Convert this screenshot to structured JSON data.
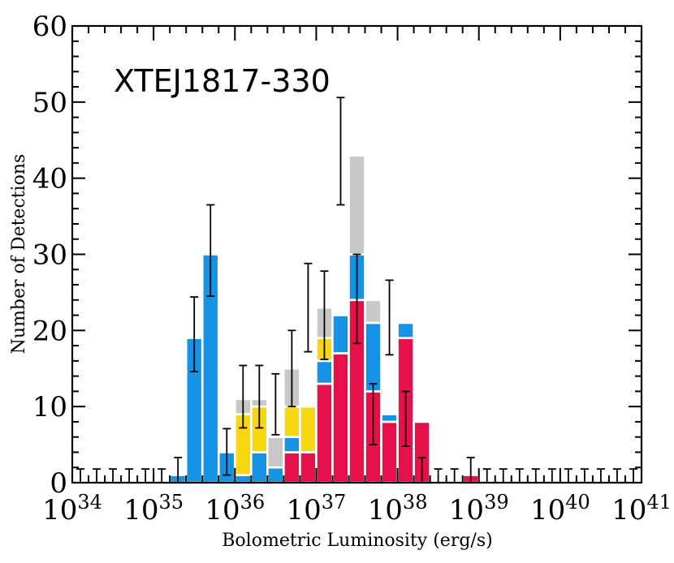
{
  "chart_data": {
    "type": "bar",
    "stacked": true,
    "annotation": "XTEJ1817-330",
    "xlabel": "Bolometric Luminosity (erg/s)",
    "ylabel": "Number of Detections",
    "xscale": "log",
    "xlim": [
      1e+34,
      1e+41
    ],
    "ylim": [
      0,
      60
    ],
    "y_ticks": [
      "0",
      "10",
      "20",
      "30",
      "40",
      "50",
      "60"
    ],
    "x_tick_labels": [
      {
        "base": "10",
        "exp": "34"
      },
      {
        "base": "10",
        "exp": "35"
      },
      {
        "base": "10",
        "exp": "36"
      },
      {
        "base": "10",
        "exp": "37"
      },
      {
        "base": "10",
        "exp": "38"
      },
      {
        "base": "10",
        "exp": "39"
      },
      {
        "base": "10",
        "exp": "40"
      },
      {
        "base": "10",
        "exp": "41"
      }
    ],
    "bin_width_dex": 0.2,
    "bin_start_log": 34.0,
    "bins_log_left": [
      35.2,
      35.4,
      35.6,
      35.8,
      36.0,
      36.2,
      36.4,
      36.6,
      36.8,
      37.0,
      37.2,
      37.4,
      37.6,
      37.8,
      38.0,
      38.2,
      38.8
    ],
    "series": [
      {
        "color": "#e8104a",
        "values": [
          0,
          0,
          0,
          0,
          0,
          0,
          0,
          4,
          4,
          13,
          17,
          24,
          12,
          8,
          19,
          8,
          1
        ]
      },
      {
        "color": "#1593e6",
        "values": [
          1,
          19,
          30,
          4,
          1,
          4,
          2,
          2,
          0,
          3,
          5,
          6,
          9,
          1,
          2,
          0,
          0
        ]
      },
      {
        "color": "#f7d70f",
        "values": [
          0,
          0,
          0,
          0,
          8,
          6,
          0,
          4,
          6,
          3,
          0,
          0,
          0,
          0,
          0,
          0,
          0
        ]
      },
      {
        "color": "#c8c8c8",
        "values": [
          0,
          0,
          0,
          0,
          2,
          1,
          4,
          5,
          0,
          4,
          0,
          13,
          3,
          0,
          0,
          0,
          0
        ]
      }
    ],
    "error_bars": {
      "upper": [
        3.3,
        24.4,
        36.5,
        7.1,
        15.4,
        15.4,
        14.3,
        20.0,
        28.8,
        27.8,
        50.6,
        30.0,
        13.0,
        26.6,
        12.0,
        3.3,
        3.3
      ],
      "lower": [
        0,
        14.6,
        24.5,
        1.0,
        7.2,
        7.2,
        6.3,
        10.0,
        17.2,
        16.2,
        36.5,
        18.3,
        5.0,
        16.8,
        4.8,
        0,
        0
      ],
      "empty_bin_upper": 1.8
    },
    "grid": false,
    "legend": "none"
  }
}
